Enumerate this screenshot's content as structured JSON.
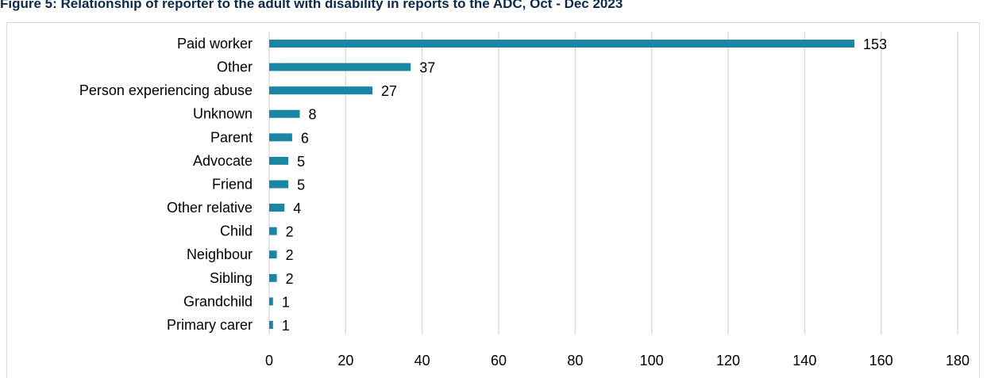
{
  "page": {
    "figure_title": "Figure 5: Relationship of reporter to the adult with disability in reports to the ADC, Oct - Dec 2023"
  },
  "chart_data": {
    "type": "bar",
    "orientation": "horizontal",
    "title": "Figure 5: Relationship of reporter to the adult with disability in reports to the ADC, Oct - Dec 2023",
    "categories": [
      "Paid worker",
      "Other",
      "Person experiencing abuse",
      "Unknown",
      "Parent",
      "Advocate",
      "Friend",
      "Other relative",
      "Child",
      "Neighbour",
      "Sibling",
      "Grandchild",
      "Primary carer"
    ],
    "values": [
      153,
      37,
      27,
      8,
      6,
      5,
      5,
      4,
      2,
      2,
      2,
      1,
      1
    ],
    "xlim": [
      0,
      180
    ],
    "xticks": [
      0,
      20,
      40,
      60,
      80,
      100,
      120,
      140,
      160,
      180
    ],
    "grid": true,
    "data_labels": true,
    "bar_color": "#1a86a3",
    "gridline_color": "#d9d9d9"
  }
}
